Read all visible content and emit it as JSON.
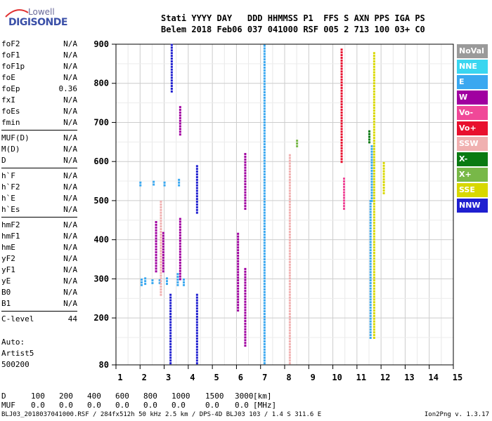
{
  "logo": {
    "line1": "Lowell",
    "line2": "DIGISONDE"
  },
  "header": {
    "labels": [
      "Stati",
      "YYYY",
      "DAY",
      "DDD",
      "HHMMSS",
      "P1",
      "FFS",
      "S",
      "AXN",
      "PPS",
      "IGA",
      "PS"
    ],
    "values": [
      "Belem",
      "2018",
      "Feb06",
      "037",
      "041000",
      "RSF",
      "005",
      "2",
      "713",
      "100",
      "03+",
      "C0"
    ]
  },
  "params": [
    [
      {
        "label": "foF2",
        "value": "N/A"
      },
      {
        "label": "foF1",
        "value": "N/A"
      },
      {
        "label": "foF1p",
        "value": "N/A"
      },
      {
        "label": "foE",
        "value": "N/A"
      },
      {
        "label": "foEp",
        "value": "0.36"
      },
      {
        "label": "fxI",
        "value": "N/A"
      },
      {
        "label": "foEs",
        "value": "N/A"
      },
      {
        "label": "fmin",
        "value": "N/A"
      }
    ],
    [
      {
        "label": "MUF(D)",
        "value": "N/A"
      },
      {
        "label": "M(D)",
        "value": "N/A"
      },
      {
        "label": "D",
        "value": "N/A"
      }
    ],
    [
      {
        "label": "h`F",
        "value": "N/A"
      },
      {
        "label": "h`F2",
        "value": "N/A"
      },
      {
        "label": "h`E",
        "value": "N/A"
      },
      {
        "label": "h`Es",
        "value": "N/A"
      }
    ],
    [
      {
        "label": "hmF2",
        "value": "N/A"
      },
      {
        "label": "hmF1",
        "value": "N/A"
      },
      {
        "label": "hmE",
        "value": "N/A"
      },
      {
        "label": "yF2",
        "value": "N/A"
      },
      {
        "label": "yF1",
        "value": "N/A"
      },
      {
        "label": "yE",
        "value": "N/A"
      },
      {
        "label": "B0",
        "value": "N/A"
      },
      {
        "label": "B1",
        "value": "N/A"
      }
    ],
    [
      {
        "label": "C-level",
        "value": "44"
      }
    ]
  ],
  "auto": {
    "line1": "Auto:",
    "line2": "Artist5",
    "line3": "500200"
  },
  "legend": [
    {
      "label": "NoVal",
      "color": "#9a9a9a"
    },
    {
      "label": "NNE",
      "color": "#3ad6f0"
    },
    {
      "label": "E",
      "color": "#3aa8f0"
    },
    {
      "label": "W",
      "color": "#a000a0"
    },
    {
      "label": "Vo-",
      "color": "#f04898"
    },
    {
      "label": "Vo+",
      "color": "#e8102e"
    },
    {
      "label": "SSW",
      "color": "#f0b0b0"
    },
    {
      "label": "X-",
      "color": "#0a7a12"
    },
    {
      "label": "X+",
      "color": "#78b848"
    },
    {
      "label": "SSE",
      "color": "#d8d800"
    },
    {
      "label": "NNW",
      "color": "#2020d0"
    }
  ],
  "bottom": {
    "d_label": "D",
    "d_values": [
      "100",
      "200",
      "400",
      "600",
      "800",
      "1000",
      "1500",
      "3000",
      "[km]"
    ],
    "muf_label": "MUF",
    "muf_values": [
      "0.0",
      "0.0",
      "0.0",
      "0.0",
      "0.0",
      "0.0",
      "0.0",
      "0.0",
      "[MHz]"
    ]
  },
  "footer": "BLJ03_2018037041000.RSF / 284fx512h 50 kHz 2.5 km / DPS-4D BLJ03 103 / 1.4 S 311.6 E",
  "version": "Ion2Png v. 1.3.17",
  "chart_data": {
    "type": "scatter",
    "xlim": [
      1,
      15
    ],
    "ylim": [
      80,
      900
    ],
    "xticks": [
      1,
      2,
      3,
      4,
      5,
      6,
      7,
      8,
      9,
      10,
      11,
      12,
      13,
      14,
      15
    ],
    "yticks": [
      80,
      200,
      300,
      400,
      500,
      600,
      700,
      800,
      900
    ],
    "grid": true,
    "traces": [
      {
        "color": "#3aa8f0",
        "x": 2.05,
        "y": [
          285,
          305
        ]
      },
      {
        "color": "#3aa8f0",
        "x": 2.2,
        "y": [
          288,
          302
        ]
      },
      {
        "color": "#3aa8f0",
        "x": 2.5,
        "y": [
          290,
          300
        ]
      },
      {
        "color": "#3aa8f0",
        "x": 2.8,
        "y": [
          290,
          300
        ]
      },
      {
        "color": "#3aa8f0",
        "x": 3.1,
        "y": [
          288,
          302
        ]
      },
      {
        "color": "#3aa8f0",
        "x": 3.55,
        "y": [
          285,
          315
        ]
      },
      {
        "color": "#3aa8f0",
        "x": 3.8,
        "y": [
          285,
          305
        ]
      },
      {
        "color": "#3aa8f0",
        "x": 2.0,
        "y": [
          540,
          550
        ]
      },
      {
        "color": "#3aa8f0",
        "x": 2.55,
        "y": [
          542,
          550
        ]
      },
      {
        "color": "#3aa8f0",
        "x": 3.0,
        "y": [
          540,
          552
        ]
      },
      {
        "color": "#3aa8f0",
        "x": 3.6,
        "y": [
          540,
          555
        ]
      },
      {
        "color": "#3aa8f0",
        "x": 7.15,
        "y": [
          85,
          900
        ]
      },
      {
        "color": "#3aa8f0",
        "x": 11.55,
        "y": [
          150,
          500
        ]
      },
      {
        "color": "#3aa8f0",
        "x": 11.6,
        "y": [
          500,
          640
        ]
      },
      {
        "color": "#2020d0",
        "x": 3.25,
        "y": [
          85,
          260
        ]
      },
      {
        "color": "#2020d0",
        "x": 3.3,
        "y": [
          780,
          900
        ]
      },
      {
        "color": "#2020d0",
        "x": 4.35,
        "y": [
          85,
          260
        ]
      },
      {
        "color": "#2020d0",
        "x": 4.35,
        "y": [
          470,
          590
        ]
      },
      {
        "color": "#a000a0",
        "x": 3.65,
        "y": [
          300,
          460
        ]
      },
      {
        "color": "#a000a0",
        "x": 3.65,
        "y": [
          670,
          740
        ]
      },
      {
        "color": "#a000a0",
        "x": 6.05,
        "y": [
          220,
          420
        ]
      },
      {
        "color": "#a000a0",
        "x": 6.35,
        "y": [
          130,
          330
        ]
      },
      {
        "color": "#a000a0",
        "x": 6.35,
        "y": [
          480,
          620
        ]
      },
      {
        "color": "#a000a0",
        "x": 2.65,
        "y": [
          320,
          450
        ]
      },
      {
        "color": "#a000a0",
        "x": 2.95,
        "y": [
          320,
          420
        ]
      },
      {
        "color": "#e8102e",
        "x": 10.35,
        "y": [
          600,
          890
        ]
      },
      {
        "color": "#f04898",
        "x": 10.45,
        "y": [
          480,
          560
        ]
      },
      {
        "color": "#f0b0b0",
        "x": 8.2,
        "y": [
          85,
          620
        ]
      },
      {
        "color": "#f0b0b0",
        "x": 2.85,
        "y": [
          260,
          500
        ]
      },
      {
        "color": "#d8d800",
        "x": 11.7,
        "y": [
          150,
          880
        ]
      },
      {
        "color": "#d8d800",
        "x": 12.1,
        "y": [
          520,
          600
        ]
      },
      {
        "color": "#78b848",
        "x": 8.5,
        "y": [
          640,
          660
        ]
      },
      {
        "color": "#0a7a12",
        "x": 11.5,
        "y": [
          650,
          680
        ]
      }
    ]
  }
}
